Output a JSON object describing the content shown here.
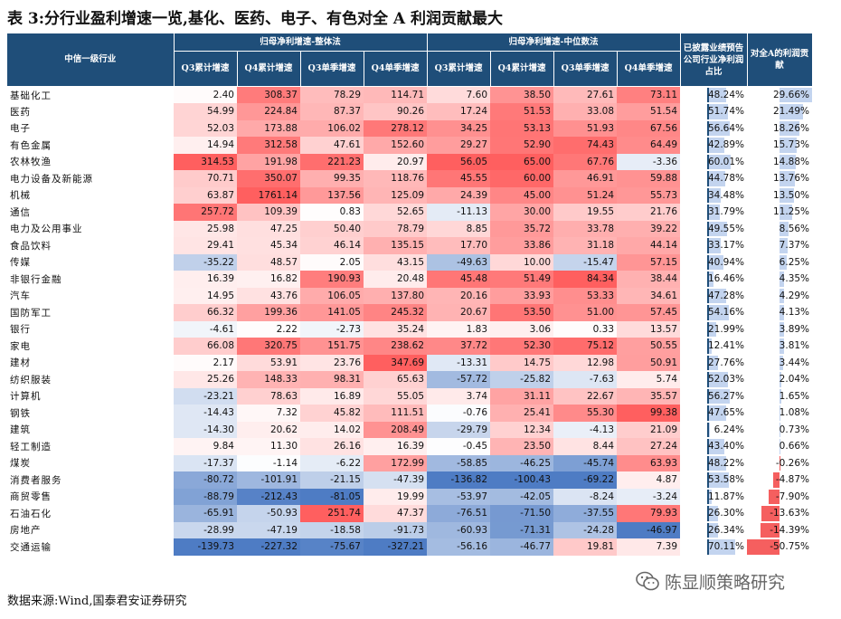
{
  "title": "表 3:分行业盈利增速一览,基化、医药、电子、有色对全 A 利润贡献最大",
  "header": {
    "industry": "中信一级行业",
    "group_overall": "归母净利增速-整体法",
    "group_median": "归母净利增速-中位数法",
    "disclosed": "已披露业绩预告公司行业净利润占比",
    "contribution": "对全A的利润贡献",
    "cols": [
      "Q3累计增速",
      "Q4累计增速",
      "Q3单季增速",
      "Q4单季增速",
      "Q3累计增速",
      "Q4累计增速",
      "Q3单季增速",
      "Q4单季增速"
    ]
  },
  "rows": [
    {
      "name": "基础化工",
      "v": [
        "2.40",
        "308.37",
        "78.29",
        "114.71",
        "7.60",
        "38.50",
        "27.61",
        "73.11"
      ],
      "p": "48.24%",
      "c": "29.66%"
    },
    {
      "name": "医药",
      "v": [
        "54.99",
        "224.84",
        "87.37",
        "90.26",
        "17.24",
        "51.53",
        "33.08",
        "51.54"
      ],
      "p": "51.74%",
      "c": "21.49%"
    },
    {
      "name": "电子",
      "v": [
        "52.03",
        "173.88",
        "106.02",
        "278.12",
        "34.25",
        "53.13",
        "51.93",
        "67.56"
      ],
      "p": "56.64%",
      "c": "18.26%"
    },
    {
      "name": "有色金属",
      "v": [
        "14.94",
        "312.58",
        "47.61",
        "152.60",
        "29.27",
        "52.90",
        "74.43",
        "64.49"
      ],
      "p": "42.89%",
      "c": "15.73%"
    },
    {
      "name": "农林牧渔",
      "v": [
        "314.53",
        "191.98",
        "221.23",
        "20.97",
        "56.05",
        "65.00",
        "67.76",
        "-3.36"
      ],
      "p": "60.01%",
      "c": "14.88%"
    },
    {
      "name": "电力设备及新能源",
      "v": [
        "70.71",
        "350.07",
        "99.35",
        "118.76",
        "45.55",
        "60.00",
        "46.91",
        "59.88"
      ],
      "p": "44.78%",
      "c": "13.76%"
    },
    {
      "name": "机械",
      "v": [
        "63.87",
        "1761.14",
        "137.56",
        "125.09",
        "24.39",
        "45.00",
        "51.24",
        "55.73"
      ],
      "p": "34.48%",
      "c": "13.50%"
    },
    {
      "name": "通信",
      "v": [
        "257.72",
        "109.39",
        "0.83",
        "52.65",
        "-11.13",
        "30.00",
        "19.55",
        "21.76"
      ],
      "p": "31.79%",
      "c": "11.25%"
    },
    {
      "name": "电力及公用事业",
      "v": [
        "25.98",
        "47.25",
        "50.40",
        "78.79",
        "8.85",
        "35.72",
        "33.78",
        "39.22"
      ],
      "p": "49.55%",
      "c": "8.56%"
    },
    {
      "name": "食品饮料",
      "v": [
        "29.41",
        "45.34",
        "46.14",
        "135.15",
        "17.70",
        "33.86",
        "31.18",
        "44.14"
      ],
      "p": "33.17%",
      "c": "7.37%"
    },
    {
      "name": "传媒",
      "v": [
        "-35.22",
        "48.57",
        "2.05",
        "43.15",
        "-49.63",
        "10.00",
        "-15.47",
        "57.15"
      ],
      "p": "40.94%",
      "c": "6.25%"
    },
    {
      "name": "非银行金融",
      "v": [
        "16.39",
        "16.82",
        "190.93",
        "20.48",
        "45.48",
        "51.49",
        "84.34",
        "38.44"
      ],
      "p": "16.46%",
      "c": "4.35%"
    },
    {
      "name": "汽车",
      "v": [
        "14.95",
        "43.76",
        "106.05",
        "137.80",
        "20.16",
        "33.93",
        "53.33",
        "34.61"
      ],
      "p": "47.28%",
      "c": "4.29%"
    },
    {
      "name": "国防军工",
      "v": [
        "66.32",
        "199.36",
        "141.05",
        "245.32",
        "20.67",
        "53.50",
        "51.00",
        "57.45"
      ],
      "p": "54.16%",
      "c": "4.13%"
    },
    {
      "name": "银行",
      "v": [
        "-4.61",
        "2.22",
        "-2.73",
        "35.24",
        "1.83",
        "3.06",
        "0.33",
        "13.57"
      ],
      "p": "21.99%",
      "c": "3.89%"
    },
    {
      "name": "家电",
      "v": [
        "66.08",
        "320.75",
        "151.75",
        "238.62",
        "37.72",
        "52.30",
        "75.12",
        "50.55"
      ],
      "p": "12.41%",
      "c": "3.81%"
    },
    {
      "name": "建材",
      "v": [
        "2.17",
        "53.91",
        "23.76",
        "347.69",
        "-13.31",
        "14.75",
        "12.98",
        "50.91"
      ],
      "p": "27.76%",
      "c": "3.44%"
    },
    {
      "name": "纺织服装",
      "v": [
        "25.26",
        "148.33",
        "98.31",
        "65.63",
        "-57.72",
        "-25.82",
        "-7.63",
        "5.74"
      ],
      "p": "52.03%",
      "c": "2.04%"
    },
    {
      "name": "计算机",
      "v": [
        "-23.21",
        "78.63",
        "16.89",
        "55.05",
        "3.74",
        "31.11",
        "22.67",
        "35.57"
      ],
      "p": "56.27%",
      "c": "1.65%"
    },
    {
      "name": "钢铁",
      "v": [
        "-14.43",
        "7.32",
        "45.82",
        "111.51",
        "-0.76",
        "25.41",
        "55.30",
        "99.38"
      ],
      "p": "47.65%",
      "c": "1.08%"
    },
    {
      "name": "建筑",
      "v": [
        "-14.30",
        "20.62",
        "14.02",
        "208.49",
        "-29.79",
        "12.34",
        "-4.13",
        "21.09"
      ],
      "p": "6.24%",
      "c": "0.73%"
    },
    {
      "name": "轻工制造",
      "v": [
        "9.84",
        "11.30",
        "26.16",
        "16.39",
        "-0.45",
        "23.50",
        "8.44",
        "27.24"
      ],
      "p": "43.40%",
      "c": "0.66%"
    },
    {
      "name": "煤炭",
      "v": [
        "-17.37",
        "-1.14",
        "-6.22",
        "172.99",
        "-58.85",
        "-46.25",
        "-45.74",
        "63.93"
      ],
      "p": "48.22%",
      "c": "-0.26%"
    },
    {
      "name": "消费者服务",
      "v": [
        "-80.72",
        "-101.91",
        "-21.15",
        "-47.39",
        "-136.82",
        "-100.43",
        "-69.22",
        "4.87"
      ],
      "p": "53.58%",
      "c": "-4.87%"
    },
    {
      "name": "商贸零售",
      "v": [
        "-88.79",
        "-212.43",
        "-81.05",
        "19.99",
        "-53.97",
        "-42.05",
        "-8.24",
        "-3.24"
      ],
      "p": "11.87%",
      "c": "-7.90%"
    },
    {
      "name": "石油石化",
      "v": [
        "-65.91",
        "-50.93",
        "251.74",
        "47.37",
        "-76.51",
        "-71.50",
        "-37.55",
        "79.93"
      ],
      "p": "26.30%",
      "c": "-13.63%"
    },
    {
      "name": "房地产",
      "v": [
        "-28.99",
        "-47.19",
        "-18.58",
        "-91.73",
        "-60.93",
        "-71.31",
        "-24.28",
        "-46.97"
      ],
      "p": "26.34%",
      "c": "-14.39%"
    },
    {
      "name": "交通运输",
      "v": [
        "-139.73",
        "-227.32",
        "-75.67",
        "-327.21",
        "-56.16",
        "-46.77",
        "19.81",
        "7.39"
      ],
      "p": "70.11%",
      "c": "-50.75%"
    }
  ],
  "source": "数据来源:Wind,国泰君安证券研究",
  "watermark": "陈显顺策略研究",
  "watermark_icon": "wechat-icon",
  "colors": {
    "header_bg": "#1f4e79",
    "positive": "#f55f5f",
    "negative": "#4e7cc4",
    "bar_blue": "#c3d4ef",
    "bar_red": "#f55f5f"
  }
}
